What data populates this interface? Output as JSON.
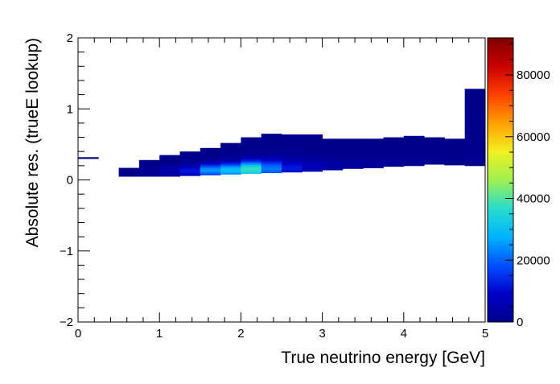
{
  "chart_data": {
    "type": "heatmap",
    "title": "",
    "xlabel": "True neutrino energy [GeV]",
    "ylabel": "Absolute res. (trueE lookup)",
    "xlim": [
      0,
      5
    ],
    "ylim": [
      -2,
      2
    ],
    "x_ticks": [
      0,
      1,
      2,
      3,
      4,
      5
    ],
    "x_tick_labels": [
      "0",
      "1",
      "2",
      "3",
      "4",
      "5"
    ],
    "y_ticks": [
      -2,
      -1,
      0,
      1,
      2
    ],
    "y_tick_labels": [
      "−2",
      "−1",
      "0",
      "1",
      "2"
    ],
    "colorbar": {
      "range": [
        0,
        92000
      ],
      "ticks": [
        0,
        20000,
        40000,
        60000,
        80000
      ],
      "tick_labels": [
        "0",
        "20000",
        "40000",
        "60000",
        "80000"
      ],
      "palette": [
        "#00008b",
        "#0000c8",
        "#0050ff",
        "#00b4ff",
        "#28dccc",
        "#a0f050",
        "#f0f020",
        "#ffa000",
        "#ff4000",
        "#c80000",
        "#800000"
      ]
    },
    "grid": false,
    "columns": [
      {
        "x0": 0.0,
        "x1": 0.25,
        "ylo": 0.3,
        "yhi": 0.32,
        "peak_y": 0.31,
        "peak": 20
      },
      {
        "x0": 0.5,
        "x1": 0.75,
        "ylo": 0.05,
        "yhi": 0.17,
        "peak_y": 0.12,
        "peak": 300
      },
      {
        "x0": 0.75,
        "x1": 1.0,
        "ylo": 0.05,
        "yhi": 0.28,
        "peak_y": 0.12,
        "peak": 1500
      },
      {
        "x0": 1.0,
        "x1": 1.25,
        "ylo": 0.05,
        "yhi": 0.35,
        "peak_y": 0.13,
        "peak": 5000
      },
      {
        "x0": 1.25,
        "x1": 1.5,
        "ylo": 0.06,
        "yhi": 0.4,
        "peak_y": 0.13,
        "peak": 12000
      },
      {
        "x0": 1.5,
        "x1": 1.75,
        "ylo": 0.07,
        "yhi": 0.45,
        "peak_y": 0.14,
        "peak": 25000
      },
      {
        "x0": 1.75,
        "x1": 2.0,
        "ylo": 0.08,
        "yhi": 0.52,
        "peak_y": 0.14,
        "peak": 30000
      },
      {
        "x0": 2.0,
        "x1": 2.25,
        "ylo": 0.09,
        "yhi": 0.6,
        "peak_y": 0.15,
        "peak": 38000
      },
      {
        "x0": 2.25,
        "x1": 2.5,
        "ylo": 0.1,
        "yhi": 0.65,
        "peak_y": 0.16,
        "peak": 22000
      },
      {
        "x0": 2.5,
        "x1": 2.75,
        "ylo": 0.11,
        "yhi": 0.64,
        "peak_y": 0.17,
        "peak": 12000
      },
      {
        "x0": 2.75,
        "x1": 3.0,
        "ylo": 0.12,
        "yhi": 0.64,
        "peak_y": 0.18,
        "peak": 7000
      },
      {
        "x0": 3.0,
        "x1": 3.25,
        "ylo": 0.14,
        "yhi": 0.58,
        "peak_y": 0.19,
        "peak": 4000
      },
      {
        "x0": 3.25,
        "x1": 3.5,
        "ylo": 0.16,
        "yhi": 0.58,
        "peak_y": 0.2,
        "peak": 3000
      },
      {
        "x0": 3.5,
        "x1": 3.75,
        "ylo": 0.17,
        "yhi": 0.58,
        "peak_y": 0.21,
        "peak": 2000
      },
      {
        "x0": 3.75,
        "x1": 4.0,
        "ylo": 0.19,
        "yhi": 0.6,
        "peak_y": 0.23,
        "peak": 1500
      },
      {
        "x0": 4.0,
        "x1": 4.25,
        "ylo": 0.2,
        "yhi": 0.62,
        "peak_y": 0.24,
        "peak": 1000
      },
      {
        "x0": 4.25,
        "x1": 4.5,
        "ylo": 0.22,
        "yhi": 0.6,
        "peak_y": 0.26,
        "peak": 800
      },
      {
        "x0": 4.5,
        "x1": 4.75,
        "ylo": 0.21,
        "yhi": 0.58,
        "peak_y": 0.26,
        "peak": 600
      },
      {
        "x0": 4.75,
        "x1": 5.0,
        "ylo": 0.2,
        "yhi": 1.28,
        "peak_y": 0.28,
        "peak": 400
      }
    ]
  }
}
